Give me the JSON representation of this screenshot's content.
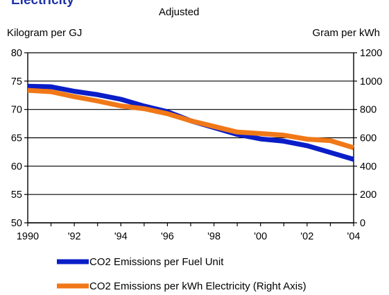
{
  "chart_data": {
    "type": "line",
    "title": "Electricity",
    "subtitle": "Adjusted",
    "left_axis_label": "Kilogram per GJ",
    "right_axis_label": "Gram per kWh",
    "x": [
      1990,
      1991,
      1992,
      1993,
      1994,
      1995,
      1996,
      1997,
      1998,
      1999,
      2000,
      2001,
      2002,
      2003,
      2004
    ],
    "x_tick_labels": [
      "1990",
      "'92",
      "'94",
      "'96",
      "'98",
      "'00",
      "'02",
      "'04"
    ],
    "x_ticks": [
      1990,
      1992,
      1994,
      1996,
      1998,
      2000,
      2002,
      2004
    ],
    "y_left_ticks": [
      50,
      55,
      60,
      65,
      70,
      75,
      80
    ],
    "y_right_ticks": [
      0,
      200,
      400,
      600,
      800,
      1000,
      1200
    ],
    "ylim_left": [
      50,
      80
    ],
    "ylim_right": [
      0,
      1200
    ],
    "xlim": [
      1990,
      2004
    ],
    "grid": "horizontal",
    "series": [
      {
        "name": "CO2 Emissions per Fuel Unit",
        "axis": "left",
        "color": "#0a1ec8",
        "values": [
          74.1,
          74.0,
          73.2,
          72.6,
          71.8,
          70.6,
          69.6,
          68.0,
          66.8,
          65.6,
          64.8,
          64.4,
          63.6,
          62.4,
          61.2
        ]
      },
      {
        "name": "CO2 Emissions per kWh Electricity (Right Axis)",
        "axis": "right",
        "color": "#f07818",
        "values": [
          935,
          925,
          890,
          860,
          825,
          805,
          770,
          720,
          680,
          640,
          630,
          618,
          590,
          580,
          530
        ]
      }
    ],
    "legend_position": "bottom"
  }
}
